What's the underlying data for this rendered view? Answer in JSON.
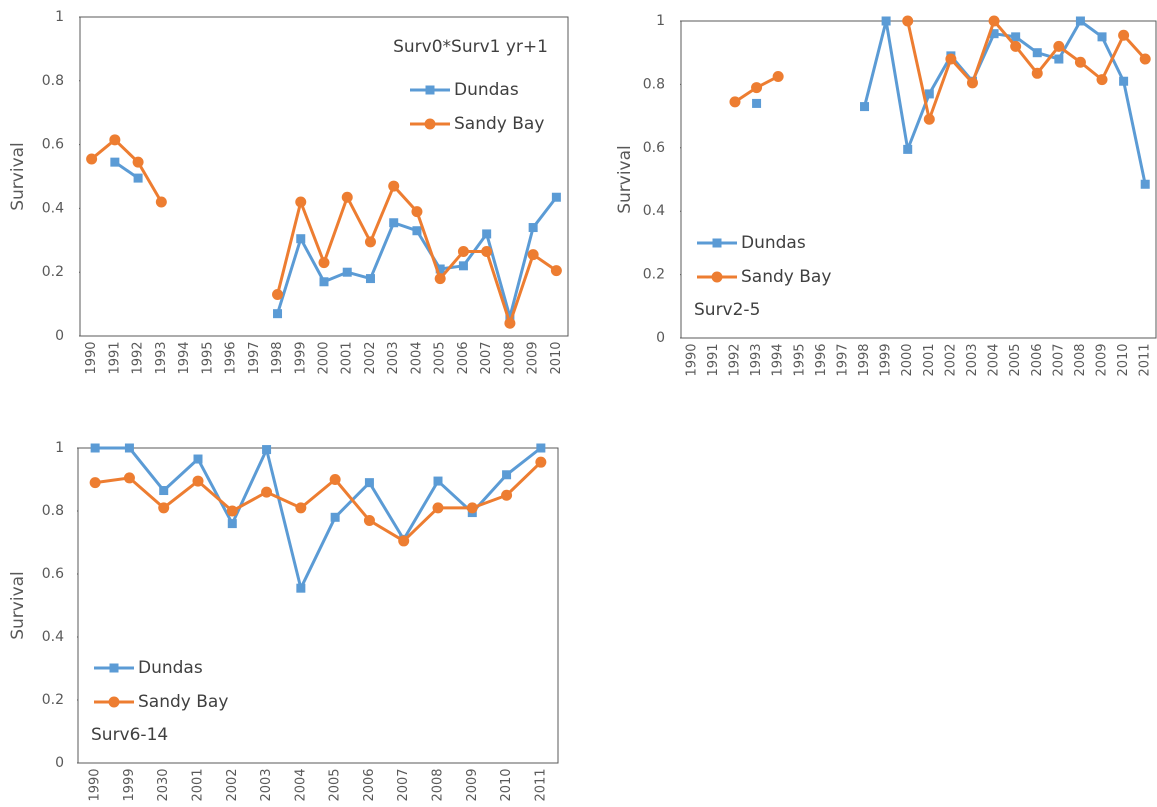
{
  "chart_data": [
    {
      "type": "line",
      "title": "Surv0*Surv1 yr+1",
      "y_label": "Survival",
      "legend": "upper right",
      "categories": [
        "1990",
        "1991",
        "1992",
        "1993",
        "1994",
        "1995",
        "1996",
        "1997",
        "1998",
        "1999",
        "2000",
        "2001",
        "2002",
        "2003",
        "2004",
        "2005",
        "2006",
        "2007",
        "2008",
        "2009",
        "2010"
      ],
      "series": [
        {
          "name": "Dundas",
          "color": "#5b9bd5",
          "marker": "square",
          "values": [
            null,
            0.545,
            0.495,
            null,
            null,
            null,
            null,
            null,
            0.07,
            0.305,
            0.17,
            0.2,
            0.18,
            0.355,
            0.33,
            0.21,
            0.22,
            0.32,
            0.06,
            0.34,
            0.435
          ]
        },
        {
          "name": "Sandy Bay",
          "color": "#ed7d31",
          "marker": "circle",
          "values": [
            0.555,
            0.615,
            0.545,
            0.42,
            null,
            null,
            null,
            null,
            0.13,
            0.42,
            0.23,
            0.435,
            0.295,
            0.47,
            0.39,
            0.18,
            0.265,
            0.265,
            0.04,
            0.255,
            0.205
          ]
        }
      ],
      "ylim": [
        0,
        1
      ],
      "yticks": [
        0,
        0.2,
        0.4,
        0.6,
        0.8,
        1
      ]
    },
    {
      "type": "line",
      "title": "Surv2-5",
      "y_label": "Survival",
      "legend": "lower left",
      "categories": [
        "1990",
        "1991",
        "1992",
        "1993",
        "1994",
        "1995",
        "1996",
        "1997",
        "1998",
        "1999",
        "2000",
        "2001",
        "2002",
        "2003",
        "2004",
        "2005",
        "2006",
        "2007",
        "2008",
        "2009",
        "2010",
        "2011"
      ],
      "series": [
        {
          "name": "Dundas",
          "color": "#5b9bd5",
          "marker": "square",
          "values": [
            null,
            null,
            null,
            0.74,
            null,
            null,
            null,
            null,
            0.73,
            1.0,
            0.595,
            0.77,
            0.89,
            0.81,
            0.96,
            0.95,
            0.9,
            0.88,
            1.0,
            0.95,
            0.81,
            0.485
          ]
        },
        {
          "name": "Sandy Bay",
          "color": "#ed7d31",
          "marker": "circle",
          "values": [
            null,
            null,
            0.745,
            0.79,
            0.825,
            null,
            null,
            null,
            null,
            null,
            1.0,
            0.69,
            0.88,
            0.805,
            1.0,
            0.92,
            0.835,
            0.92,
            0.87,
            0.815,
            0.955,
            0.88
          ]
        }
      ],
      "ylim": [
        0,
        1
      ],
      "yticks": [
        0,
        0.2,
        0.4,
        0.6,
        0.8,
        1
      ]
    },
    {
      "type": "line",
      "title": "Surv6-14",
      "y_label": "Survival",
      "legend": "lower left",
      "categories": [
        "1990",
        "1999",
        "2030",
        "2001",
        "2002",
        "2003",
        "2004",
        "2005",
        "2006",
        "2007",
        "2008",
        "2009",
        "2010",
        "2011"
      ],
      "series": [
        {
          "name": "Dundas",
          "color": "#5b9bd5",
          "marker": "square",
          "values": [
            1.0,
            1.0,
            0.865,
            0.965,
            0.76,
            0.995,
            0.555,
            0.78,
            0.89,
            0.71,
            0.895,
            0.795,
            0.915,
            1.0
          ]
        },
        {
          "name": "Sandy Bay",
          "color": "#ed7d31",
          "marker": "circle",
          "values": [
            0.89,
            0.905,
            0.81,
            0.895,
            0.8,
            0.86,
            0.81,
            0.9,
            0.77,
            0.705,
            0.81,
            0.81,
            0.85,
            0.955
          ]
        }
      ],
      "ylim": [
        0,
        1
      ],
      "yticks": [
        0,
        0.2,
        0.4,
        0.6,
        0.8,
        1
      ]
    }
  ]
}
